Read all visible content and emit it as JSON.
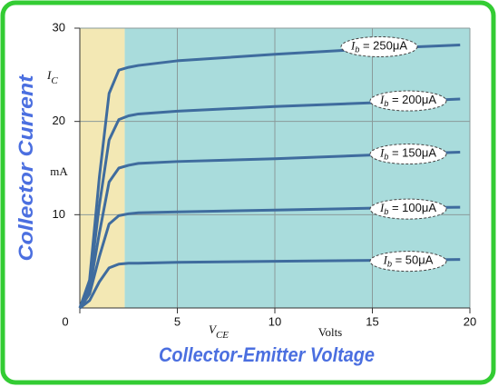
{
  "chart_data": {
    "type": "line",
    "title_y": "Collector Current",
    "title_x": "Collector-Emitter Voltage",
    "y_symbol": "IC",
    "y_unit": "mA",
    "x_symbol": "VCE",
    "x_unit": "Volts",
    "x": [
      0,
      0.5,
      1,
      1.5,
      2,
      2.5,
      3,
      5,
      10,
      15,
      19.5
    ],
    "series": [
      {
        "name": "Ib = 250μA",
        "color": "#3f6c9e",
        "values": [
          0,
          3,
          14,
          23,
          25.5,
          25.8,
          26,
          26.5,
          27.2,
          27.8,
          28.2
        ]
      },
      {
        "name": "Ib = 200μA",
        "color": "#3f6c9e",
        "values": [
          0,
          2.5,
          11,
          18,
          20.2,
          20.6,
          20.8,
          21.1,
          21.6,
          22,
          22.4
        ]
      },
      {
        "name": "Ib = 150μA",
        "color": "#3f6c9e",
        "values": [
          0,
          2,
          8,
          13.5,
          15,
          15.3,
          15.5,
          15.7,
          16,
          16.4,
          16.7
        ]
      },
      {
        "name": "Ib = 100μA",
        "color": "#3f6c9e",
        "values": [
          0,
          1.5,
          5.5,
          9,
          9.9,
          10.1,
          10.2,
          10.3,
          10.5,
          10.7,
          10.8
        ]
      },
      {
        "name": "Ib = 50μA",
        "color": "#3f6c9e",
        "values": [
          0,
          0.8,
          2.8,
          4.3,
          4.7,
          4.8,
          4.8,
          4.9,
          5,
          5.1,
          5.2
        ]
      }
    ],
    "saturation_region": [
      0,
      2.3
    ],
    "saturation_color": "#f3e8b4",
    "active_color": "#a9dcdc",
    "xlim": [
      0,
      20
    ],
    "ylim": [
      0,
      30
    ],
    "xticks": [
      0,
      5,
      10,
      15,
      20
    ],
    "yticks": [
      10,
      20,
      30
    ],
    "grid": true
  }
}
